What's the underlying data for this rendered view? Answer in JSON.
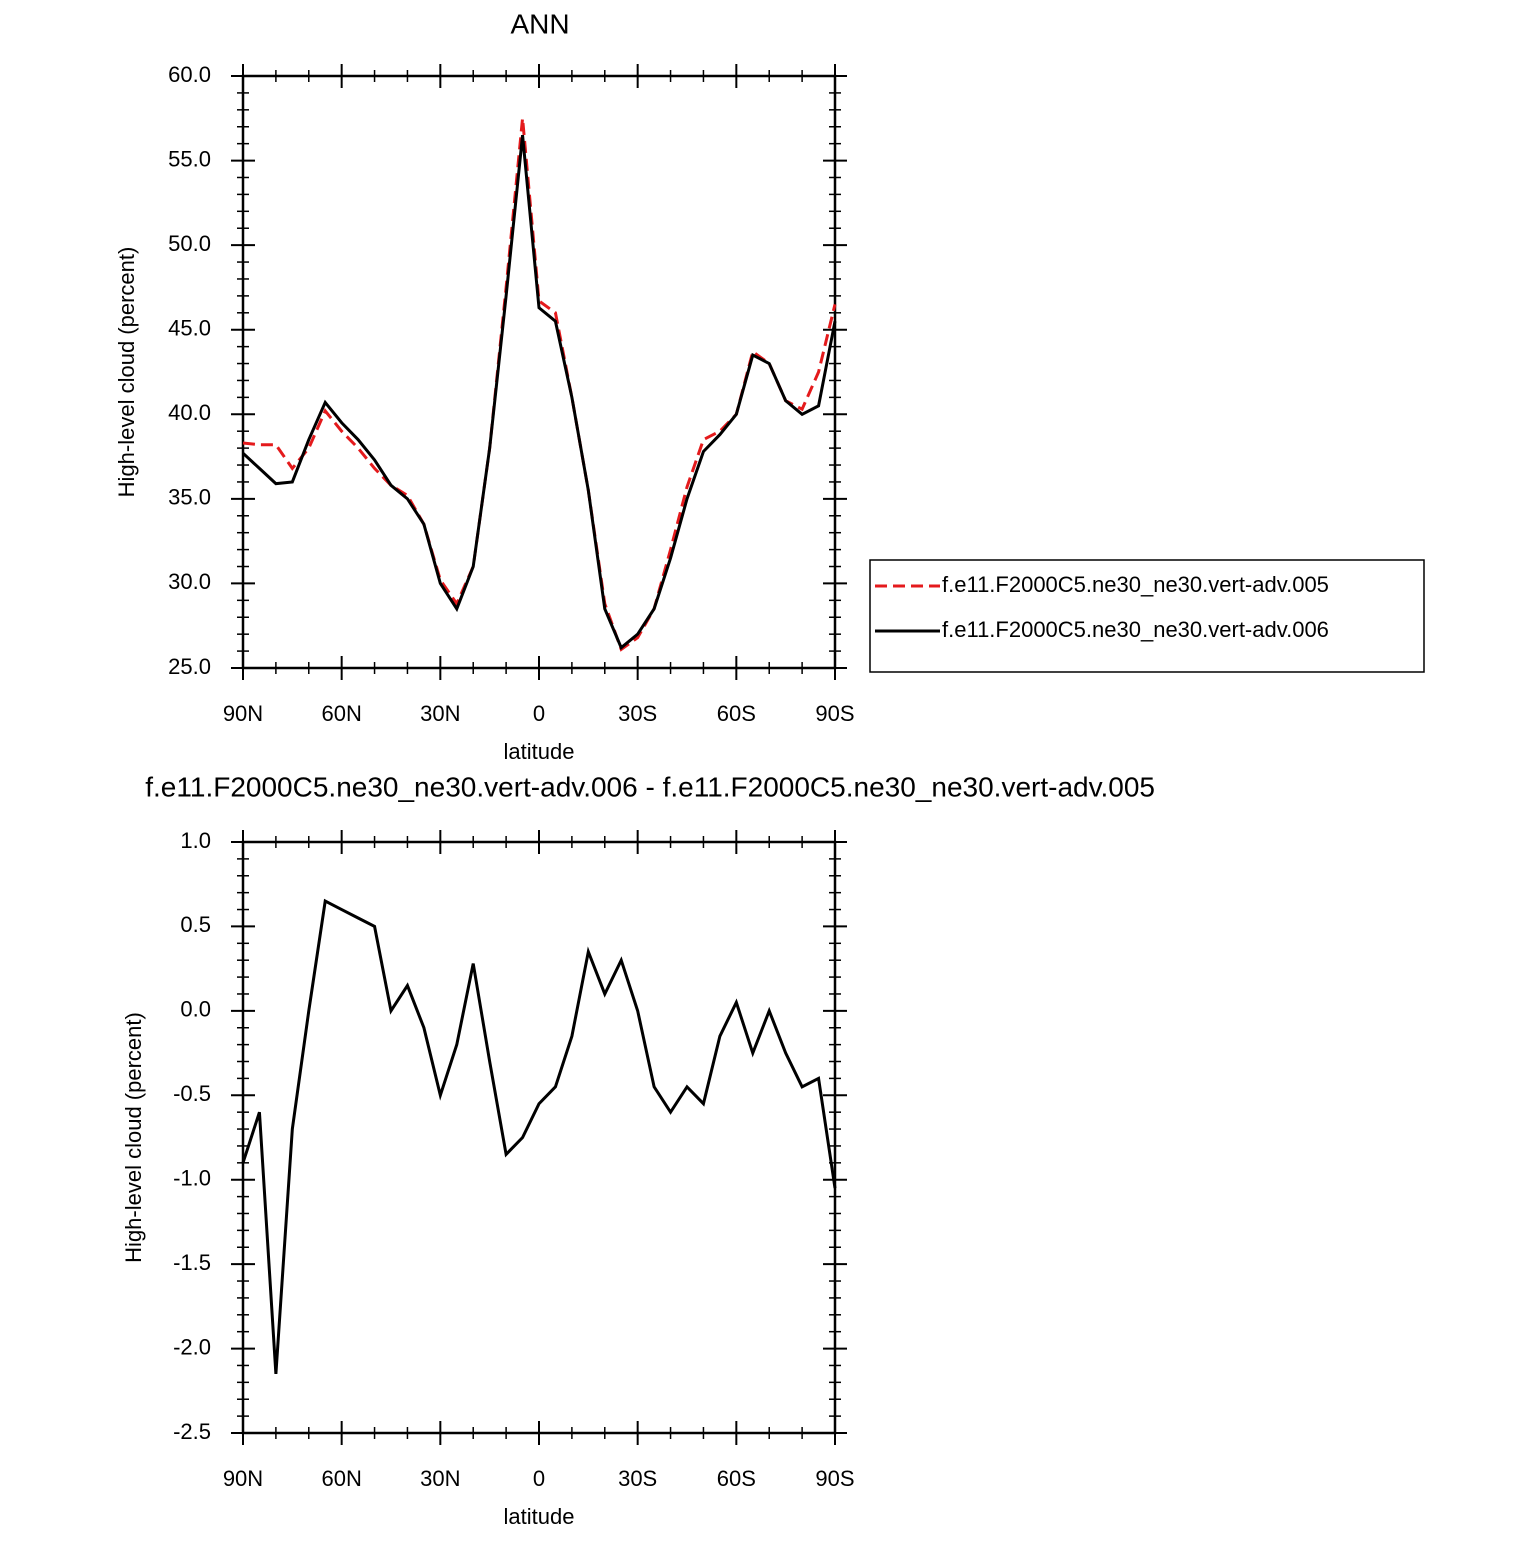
{
  "chart_data": [
    {
      "type": "line",
      "title": "ANN",
      "xlabel": "latitude",
      "ylabel": "High-level cloud (percent)",
      "x": [
        90,
        85,
        80,
        75,
        70,
        65,
        60,
        55,
        50,
        45,
        40,
        35,
        30,
        25,
        20,
        15,
        10,
        5,
        0,
        -5,
        -10,
        -15,
        -20,
        -25,
        -30,
        -35,
        -40,
        -45,
        -50,
        -55,
        -60,
        -65,
        -70,
        -75,
        -80,
        -85,
        -90
      ],
      "series": [
        {
          "name": "f.e11.F2000C5.ne30_ne30.vert-adv.005",
          "color": "#e41a1c",
          "line_style": "dashed",
          "values": [
            38.3,
            38.2,
            38.2,
            36.8,
            38.0,
            40.2,
            39.0,
            38.0,
            36.8,
            35.8,
            35.2,
            33.5,
            30.2,
            28.8,
            31.0,
            38.0,
            47.5,
            57.5,
            46.7,
            46.0,
            41.0,
            35.5,
            28.8,
            26.1,
            26.8,
            28.5,
            32.0,
            35.7,
            38.5,
            39.0,
            40.0,
            43.7,
            43.0,
            40.8,
            40.3,
            42.5,
            46.5
          ]
        },
        {
          "name": "f.e11.F2000C5.ne30_ne30.vert-adv.006",
          "color": "#000000",
          "line_style": "solid",
          "values": [
            37.7,
            36.8,
            35.9,
            36.0,
            38.5,
            40.7,
            39.5,
            38.5,
            37.3,
            35.8,
            35.0,
            33.5,
            30.0,
            28.5,
            31.0,
            38.0,
            47.0,
            56.5,
            46.3,
            45.5,
            41.0,
            35.5,
            28.5,
            26.2,
            27.0,
            28.5,
            31.5,
            35.0,
            37.8,
            38.8,
            40.0,
            43.5,
            43.0,
            40.8,
            40.0,
            40.5,
            45.5
          ]
        }
      ],
      "xlim": [
        90,
        -90
      ],
      "xticks": [
        {
          "value": 90,
          "label": "90N"
        },
        {
          "value": 60,
          "label": "60N"
        },
        {
          "value": 30,
          "label": "30N"
        },
        0,
        {
          "value": -30,
          "label": "30S"
        },
        {
          "value": -60,
          "label": "60S"
        },
        {
          "value": -90,
          "label": "90S"
        }
      ],
      "ylim": [
        25,
        60
      ],
      "yticks": [
        {
          "value": 25,
          "label": "25.0"
        },
        {
          "value": 30,
          "label": "30.0"
        },
        {
          "value": 35,
          "label": "35.0"
        },
        {
          "value": 40,
          "label": "40.0"
        },
        {
          "value": 45,
          "label": "45.0"
        },
        {
          "value": 50,
          "label": "50.0"
        },
        {
          "value": 55,
          "label": "55.0"
        },
        {
          "value": 60,
          "label": "60.0"
        }
      ],
      "legend": "right"
    },
    {
      "type": "line",
      "title": "f.e11.F2000C5.ne30_ne30.vert-adv.006 - f.e11.F2000C5.ne30_ne30.vert-adv.005",
      "xlabel": "latitude",
      "ylabel": "High-level cloud (percent)",
      "x": [
        90,
        85,
        80,
        75,
        70,
        65,
        60,
        55,
        50,
        45,
        40,
        35,
        30,
        25,
        20,
        15,
        10,
        5,
        0,
        -5,
        -10,
        -15,
        -20,
        -25,
        -30,
        -35,
        -40,
        -45,
        -50,
        -55,
        -60,
        -65,
        -70,
        -75,
        -80,
        -85,
        -90
      ],
      "values": [
        -0.9,
        -0.6,
        -2.15,
        -0.7,
        0.0,
        0.65,
        0.6,
        0.55,
        0.5,
        0.0,
        0.15,
        -0.1,
        -0.5,
        -0.2,
        0.28,
        -0.3,
        -0.85,
        -0.75,
        -0.55,
        -0.45,
        -0.15,
        0.35,
        0.1,
        0.3,
        0.0,
        -0.45,
        -0.6,
        -0.45,
        -0.55,
        -0.15,
        0.05,
        -0.25,
        0.0,
        -0.25,
        -0.45,
        -0.4,
        -1.05
      ],
      "color": "#000000",
      "xlim": [
        90,
        -90
      ],
      "xticks": [
        {
          "value": 90,
          "label": "90N"
        },
        {
          "value": 60,
          "label": "60N"
        },
        {
          "value": 30,
          "label": "30N"
        },
        0,
        {
          "value": -30,
          "label": "30S"
        },
        {
          "value": -60,
          "label": "60S"
        },
        {
          "value": -90,
          "label": "90S"
        }
      ],
      "ylim": [
        -2.5,
        1
      ],
      "yticks": [
        {
          "value": -2.5,
          "label": "-2.5"
        },
        {
          "value": -2,
          "label": "-2.0"
        },
        {
          "value": -1.5,
          "label": "-1.5"
        },
        {
          "value": -1,
          "label": "-1.0"
        },
        {
          "value": -0.5,
          "label": "-0.5"
        },
        {
          "value": 0,
          "label": "0.0"
        },
        {
          "value": 0.5,
          "label": "0.5"
        },
        {
          "value": 1,
          "label": "1.0"
        }
      ]
    }
  ]
}
